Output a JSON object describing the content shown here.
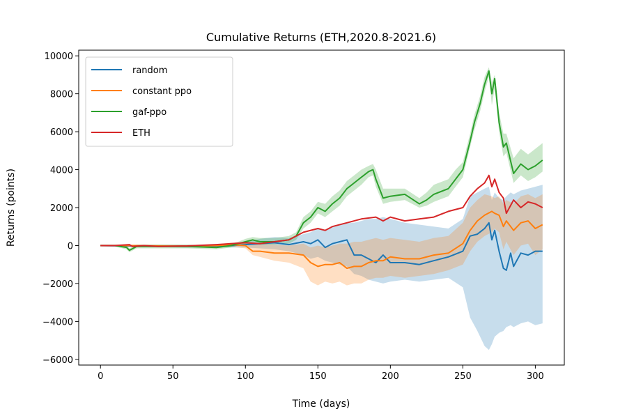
{
  "chart_data": {
    "type": "line",
    "title": "Cumulative Returns (ETH,2020.8-2021.6)",
    "xlabel": "Time (days)",
    "ylabel": "Returns (points)",
    "xlim": [
      -15,
      320
    ],
    "ylim": [
      -6300,
      10300
    ],
    "xticks": [
      0,
      50,
      100,
      150,
      200,
      250,
      300
    ],
    "yticks": [
      -6000,
      -4000,
      -2000,
      0,
      2000,
      4000,
      6000,
      8000,
      10000
    ],
    "ytick_labels": [
      "−6000",
      "−4000",
      "−2000",
      "0",
      "2000",
      "4000",
      "6000",
      "8000",
      "10000"
    ],
    "grid": false,
    "legend_position": "upper-left",
    "series": [
      {
        "name": "random",
        "color": "#1f77b4",
        "x": [
          0,
          20,
          40,
          60,
          80,
          90,
          100,
          110,
          120,
          130,
          140,
          145,
          150,
          155,
          160,
          165,
          170,
          175,
          180,
          185,
          190,
          195,
          200,
          210,
          220,
          230,
          240,
          250,
          255,
          260,
          265,
          268,
          270,
          272,
          275,
          278,
          280,
          283,
          285,
          290,
          295,
          300,
          305
        ],
        "y": [
          0,
          -20,
          -30,
          -40,
          -20,
          0,
          50,
          100,
          150,
          50,
          200,
          100,
          300,
          -100,
          100,
          200,
          300,
          -500,
          -500,
          -700,
          -900,
          -500,
          -900,
          -900,
          -1000,
          -800,
          -600,
          -300,
          500,
          600,
          900,
          1200,
          300,
          800,
          -300,
          -1200,
          -1300,
          -400,
          -1100,
          -400,
          -500,
          -300,
          -300
        ],
        "band_upper": [
          50,
          40,
          30,
          30,
          50,
          100,
          200,
          350,
          450,
          400,
          600,
          700,
          900,
          800,
          1000,
          1100,
          1200,
          1200,
          1300,
          1400,
          1400,
          1500,
          1400,
          1200,
          1100,
          1000,
          900,
          1400,
          2600,
          2800,
          3000,
          3100,
          2400,
          2800,
          2500,
          2400,
          2600,
          2800,
          2700,
          2900,
          3000,
          3100,
          3200
        ],
        "band_lower": [
          -50,
          -80,
          -90,
          -110,
          -90,
          -100,
          -100,
          -150,
          -200,
          -300,
          -500,
          -700,
          -600,
          -800,
          -900,
          -1000,
          -1100,
          -1500,
          -1600,
          -1800,
          -1900,
          -2000,
          -1900,
          -1800,
          -1900,
          -1800,
          -1700,
          -2200,
          -3800,
          -4500,
          -5300,
          -5500,
          -5200,
          -4800,
          -4600,
          -4500,
          -4300,
          -4200,
          -4300,
          -4100,
          -4000,
          -4200,
          -4100
        ]
      },
      {
        "name": "constant ppo",
        "color": "#ff7f0e",
        "x": [
          0,
          20,
          40,
          60,
          80,
          90,
          100,
          105,
          110,
          120,
          130,
          140,
          145,
          150,
          155,
          160,
          165,
          170,
          175,
          180,
          185,
          190,
          195,
          200,
          210,
          220,
          230,
          240,
          250,
          255,
          260,
          265,
          270,
          272,
          275,
          278,
          280,
          285,
          290,
          295,
          300,
          305
        ],
        "y": [
          0,
          0,
          -20,
          -30,
          0,
          50,
          0,
          -300,
          -300,
          -400,
          -400,
          -500,
          -900,
          -1100,
          -1000,
          -1000,
          -900,
          -1200,
          -1100,
          -1100,
          -900,
          -800,
          -800,
          -600,
          -700,
          -700,
          -500,
          -400,
          100,
          800,
          1300,
          1600,
          1800,
          1700,
          1600,
          1000,
          1300,
          800,
          1200,
          1300,
          900,
          1100
        ],
        "band_upper": [
          50,
          50,
          40,
          30,
          60,
          150,
          150,
          100,
          100,
          50,
          0,
          100,
          -100,
          0,
          -100,
          0,
          100,
          100,
          200,
          200,
          300,
          400,
          300,
          400,
          300,
          200,
          400,
          500,
          1200,
          2000,
          2400,
          2700,
          2600,
          2500,
          2600,
          2200,
          2400,
          2200,
          2600,
          2700,
          2500,
          2700
        ],
        "band_lower": [
          -50,
          -60,
          -80,
          -90,
          -60,
          -60,
          -150,
          -500,
          -600,
          -800,
          -900,
          -1200,
          -1900,
          -2100,
          -1900,
          -2000,
          -1900,
          -2100,
          -2000,
          -2000,
          -1800,
          -1700,
          -1700,
          -1600,
          -1700,
          -1600,
          -1500,
          -1300,
          -1000,
          -300,
          200,
          500,
          700,
          900,
          700,
          -200,
          200,
          -500,
          0,
          100,
          -500,
          -200
        ]
      },
      {
        "name": "gaf-ppo",
        "color": "#2ca02c",
        "x": [
          0,
          10,
          18,
          20,
          25,
          40,
          60,
          80,
          90,
          95,
          100,
          105,
          110,
          120,
          130,
          135,
          140,
          145,
          150,
          155,
          160,
          165,
          170,
          175,
          180,
          185,
          188,
          190,
          195,
          200,
          210,
          220,
          225,
          230,
          240,
          245,
          250,
          255,
          258,
          262,
          265,
          268,
          270,
          272,
          275,
          278,
          280,
          285,
          290,
          295,
          300,
          305
        ],
        "y": [
          0,
          0,
          -100,
          -250,
          -50,
          -50,
          -50,
          -100,
          0,
          100,
          200,
          300,
          200,
          200,
          300,
          500,
          1200,
          1500,
          2000,
          1800,
          2200,
          2500,
          3000,
          3300,
          3600,
          3900,
          4000,
          3500,
          2500,
          2600,
          2700,
          2200,
          2400,
          2700,
          3000,
          3500,
          4000,
          5500,
          6500,
          7500,
          8500,
          9200,
          8000,
          8800,
          6500,
          5200,
          5400,
          3800,
          4300,
          4000,
          4200,
          4500
        ],
        "band_upper": [
          50,
          50,
          0,
          -150,
          50,
          50,
          50,
          0,
          100,
          200,
          350,
          450,
          400,
          400,
          500,
          700,
          1500,
          1800,
          2300,
          2200,
          2600,
          2900,
          3400,
          3700,
          4000,
          4200,
          4300,
          4000,
          3000,
          3000,
          3000,
          2500,
          2800,
          3200,
          3500,
          4000,
          4400,
          5900,
          6900,
          7900,
          8900,
          9400,
          8600,
          9000,
          7000,
          5900,
          5900,
          4600,
          5100,
          4800,
          5100,
          5400
        ],
        "band_lower": [
          -50,
          -50,
          -200,
          -350,
          -150,
          -150,
          -150,
          -200,
          -100,
          0,
          50,
          150,
          50,
          50,
          100,
          300,
          900,
          1200,
          1700,
          1500,
          1800,
          2100,
          2600,
          2900,
          3200,
          3600,
          3700,
          3100,
          2200,
          2300,
          2400,
          2000,
          2100,
          2300,
          2600,
          3100,
          3600,
          5200,
          6100,
          7100,
          8100,
          8900,
          7400,
          8300,
          6000,
          4700,
          4900,
          3300,
          3700,
          3400,
          3600,
          3900
        ]
      },
      {
        "name": "ETH",
        "color": "#d62728",
        "x": [
          0,
          10,
          20,
          22,
          30,
          40,
          60,
          80,
          90,
          100,
          110,
          120,
          130,
          140,
          150,
          155,
          160,
          170,
          180,
          190,
          195,
          200,
          210,
          220,
          230,
          240,
          250,
          255,
          260,
          265,
          268,
          270,
          272,
          275,
          278,
          280,
          285,
          290,
          295,
          300,
          305
        ],
        "y": [
          0,
          0,
          50,
          -50,
          0,
          -50,
          -20,
          50,
          100,
          150,
          100,
          200,
          300,
          700,
          900,
          800,
          1000,
          1200,
          1400,
          1500,
          1300,
          1500,
          1300,
          1400,
          1500,
          1800,
          2000,
          2600,
          3000,
          3300,
          3700,
          3100,
          3500,
          2800,
          2500,
          1700,
          2400,
          2000,
          2300,
          2200,
          2000
        ]
      }
    ]
  }
}
